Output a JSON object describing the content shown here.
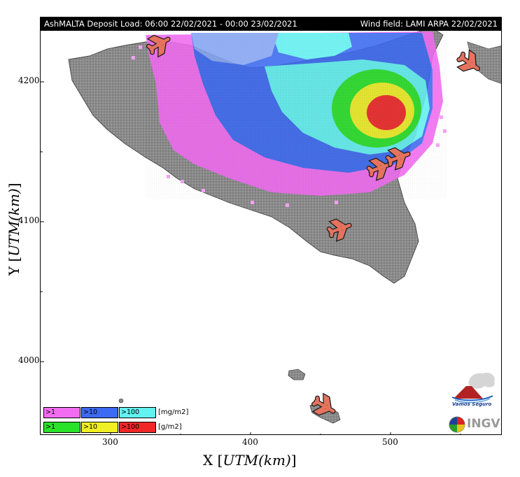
{
  "title": {
    "left": "AshMALTA Deposit Load: 06:00 22/02/2021 - 00:00 23/02/2021",
    "right": "Wind field: LAMI ARPA 22/02/2021"
  },
  "axes": {
    "x_title_prefix": "X [",
    "x_title_unit": "UTM(km)",
    "x_title_suffix": "]",
    "y_title_prefix": "Y [",
    "y_title_unit": "UTM(km)",
    "y_title_suffix": "]",
    "x_ticks": [
      "300",
      "400",
      "500"
    ],
    "y_ticks": [
      "4200",
      "4100",
      "4000"
    ]
  },
  "legend": {
    "rows": [
      {
        "cells": [
          {
            "label": ">1",
            "color": "#f26cf2"
          },
          {
            "label": ">10",
            "color": "#3c6af2"
          },
          {
            "label": ">100",
            "color": "#62f2f2"
          }
        ],
        "unit": "[mg/m2]"
      },
      {
        "cells": [
          {
            "label": ">1",
            "color": "#29e229"
          },
          {
            "label": ">10",
            "color": "#f0f025"
          },
          {
            "label": ">100",
            "color": "#f02828"
          }
        ],
        "unit": "[g/m2]"
      }
    ]
  },
  "logos": {
    "vamos": "Vamos Seguro",
    "ingv": "INGV"
  },
  "colors": {
    "land": "#8c8c8c",
    "sea": "#ffffff",
    "airport": "#e5735e"
  },
  "icons": [
    "airplane-icon",
    "airplane-icon",
    "airplane-icon",
    "airplane-icon",
    "airplane-icon",
    "airplane-icon",
    "airplane-icon"
  ]
}
